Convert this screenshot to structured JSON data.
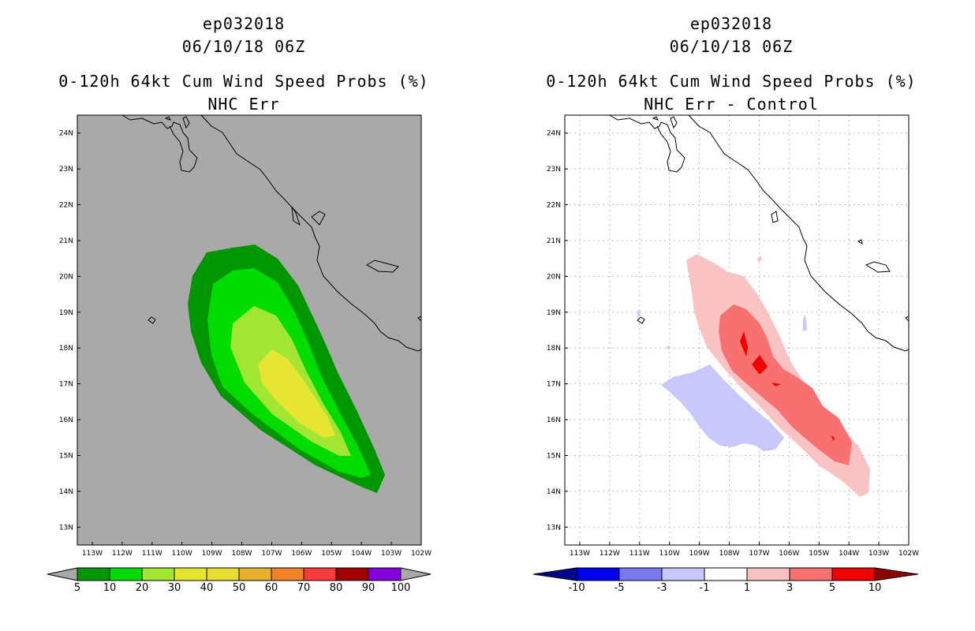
{
  "panels": [
    {
      "id": "left",
      "title_line1": "ep032018",
      "title_line2": "06/10/18 06Z",
      "title_line3": "0-120h 64kt Cum Wind Speed Probs (%)",
      "title_line4": "NHC Err",
      "lat_labels": [
        "24N",
        "23N",
        "22N",
        "21N",
        "20N",
        "19N",
        "18N",
        "17N",
        "16N",
        "15N",
        "14N",
        "13N"
      ],
      "lon_labels": [
        "113W",
        "112W",
        "111W",
        "110W",
        "109W",
        "108W",
        "107W",
        "106W",
        "105W",
        "104W",
        "103W",
        "102W"
      ],
      "colorbar_labels": [
        "5",
        "10",
        "20",
        "30",
        "40",
        "50",
        "60",
        "70",
        "80",
        "90",
        "100"
      ],
      "colorbar_colors": [
        "#009600",
        "#00dc00",
        "#a0e632",
        "#e6e632",
        "#e6dc32",
        "#e6af2d",
        "#f08228",
        "#fa3c3c",
        "#a00000",
        "#8200dc"
      ],
      "background_color": "#a9a9a9"
    },
    {
      "id": "right",
      "title_line1": "ep032018",
      "title_line2": "06/10/18 06Z",
      "title_line3": "0-120h 64kt Cum Wind Speed Probs (%)",
      "title_line4": "NHC Err - Control",
      "lat_labels": [
        "24N",
        "23N",
        "22N",
        "21N",
        "20N",
        "19N",
        "18N",
        "17N",
        "16N",
        "15N",
        "14N",
        "13N"
      ],
      "lon_labels": [
        "113W",
        "112W",
        "111W",
        "110W",
        "109W",
        "108W",
        "107W",
        "106W",
        "105W",
        "104W",
        "103W",
        "102W"
      ],
      "colorbar_labels": [
        "-10",
        "-5",
        "-3",
        "-1",
        "1",
        "3",
        "5",
        "10"
      ],
      "colorbar_colors": [
        "#00008c",
        "#0000f0",
        "#7a7af0",
        "#c8c8fa",
        "#ffffff",
        "#fac3c3",
        "#f87070",
        "#f00000",
        "#8c0000"
      ],
      "background_color": "#ffffff"
    }
  ]
}
